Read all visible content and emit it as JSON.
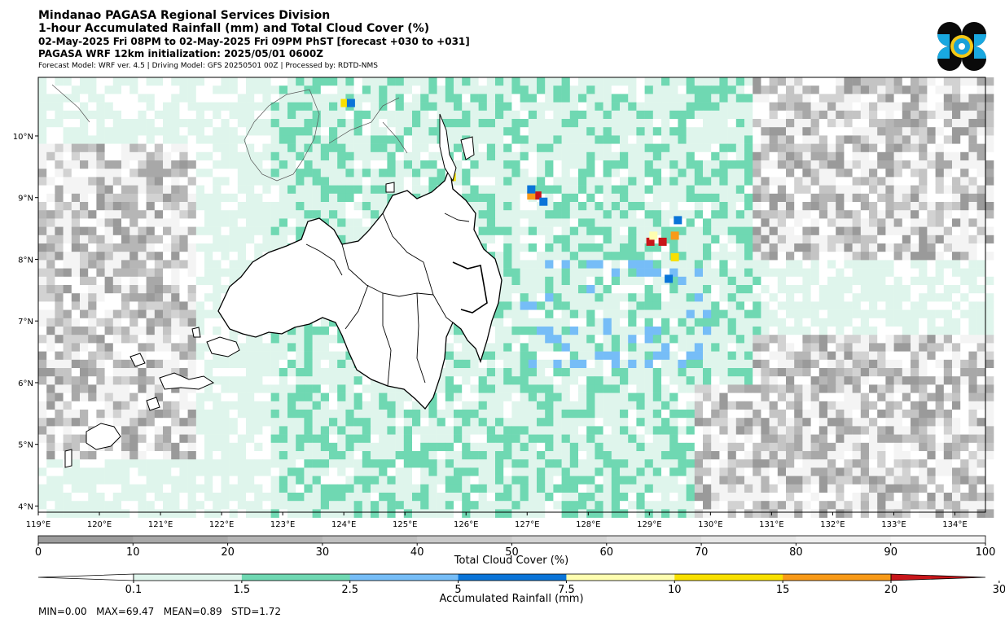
{
  "header": {
    "line1": "Mindanao PAGASA Regional Services Division",
    "line2": "1-hour Accumulated Rainfall (mm) and Total Cloud Cover (%)",
    "line3": "02-May-2025 Fri 08PM to 02-May-2025 Fri 09PM PhST [forecast +030 to +031]",
    "line4": "PAGASA WRF 12km initialization: 2025/05/01 0600Z",
    "line5": "Forecast Model: WRF ver. 4.5 | Driving Model: GFS 20250501 00Z | Processed by: RDTD-NMS"
  },
  "map": {
    "lon_range": [
      119,
      134.5
    ],
    "lat_range": [
      3.9,
      10.95
    ],
    "lon_ticks": [
      "119°E",
      "120°E",
      "121°E",
      "122°E",
      "123°E",
      "124°E",
      "125°E",
      "126°E",
      "127°E",
      "128°E",
      "129°E",
      "130°E",
      "131°E",
      "132°E",
      "133°E",
      "134°E"
    ],
    "lat_ticks": [
      "10°N",
      "9°N",
      "8°N",
      "7°N",
      "6°N",
      "5°N",
      "4°N"
    ]
  },
  "cloud_colorbar": {
    "label": "Total Cloud Cover (%)",
    "ticks": [
      "0",
      "10",
      "20",
      "30",
      "40",
      "50",
      "60",
      "70",
      "80",
      "90",
      "100"
    ],
    "colors": [
      "#9c9c9c",
      "#a8a8a8",
      "#b4b4b4",
      "#bfbfbf",
      "#cacaca",
      "#d4d4d4",
      "#dedede",
      "#e7e7e7",
      "#efefef",
      "#f7f7f7"
    ]
  },
  "rain_colorbar": {
    "label": "Accumulated Rainfall (mm)",
    "ticks": [
      "0.1",
      "1.5",
      "2.5",
      "5",
      "7.5",
      "10",
      "15",
      "20",
      "30"
    ],
    "colors": [
      "#dff5ec",
      "#6fd8b2",
      "#76bdf7",
      "#0a74d8",
      "#fefeb0",
      "#f8e000",
      "#f89a18",
      "#f15a16",
      "#c8161a"
    ]
  },
  "stats": "MIN=0.00   MAX=69.47   MEAN=0.89   STD=1.72"
}
